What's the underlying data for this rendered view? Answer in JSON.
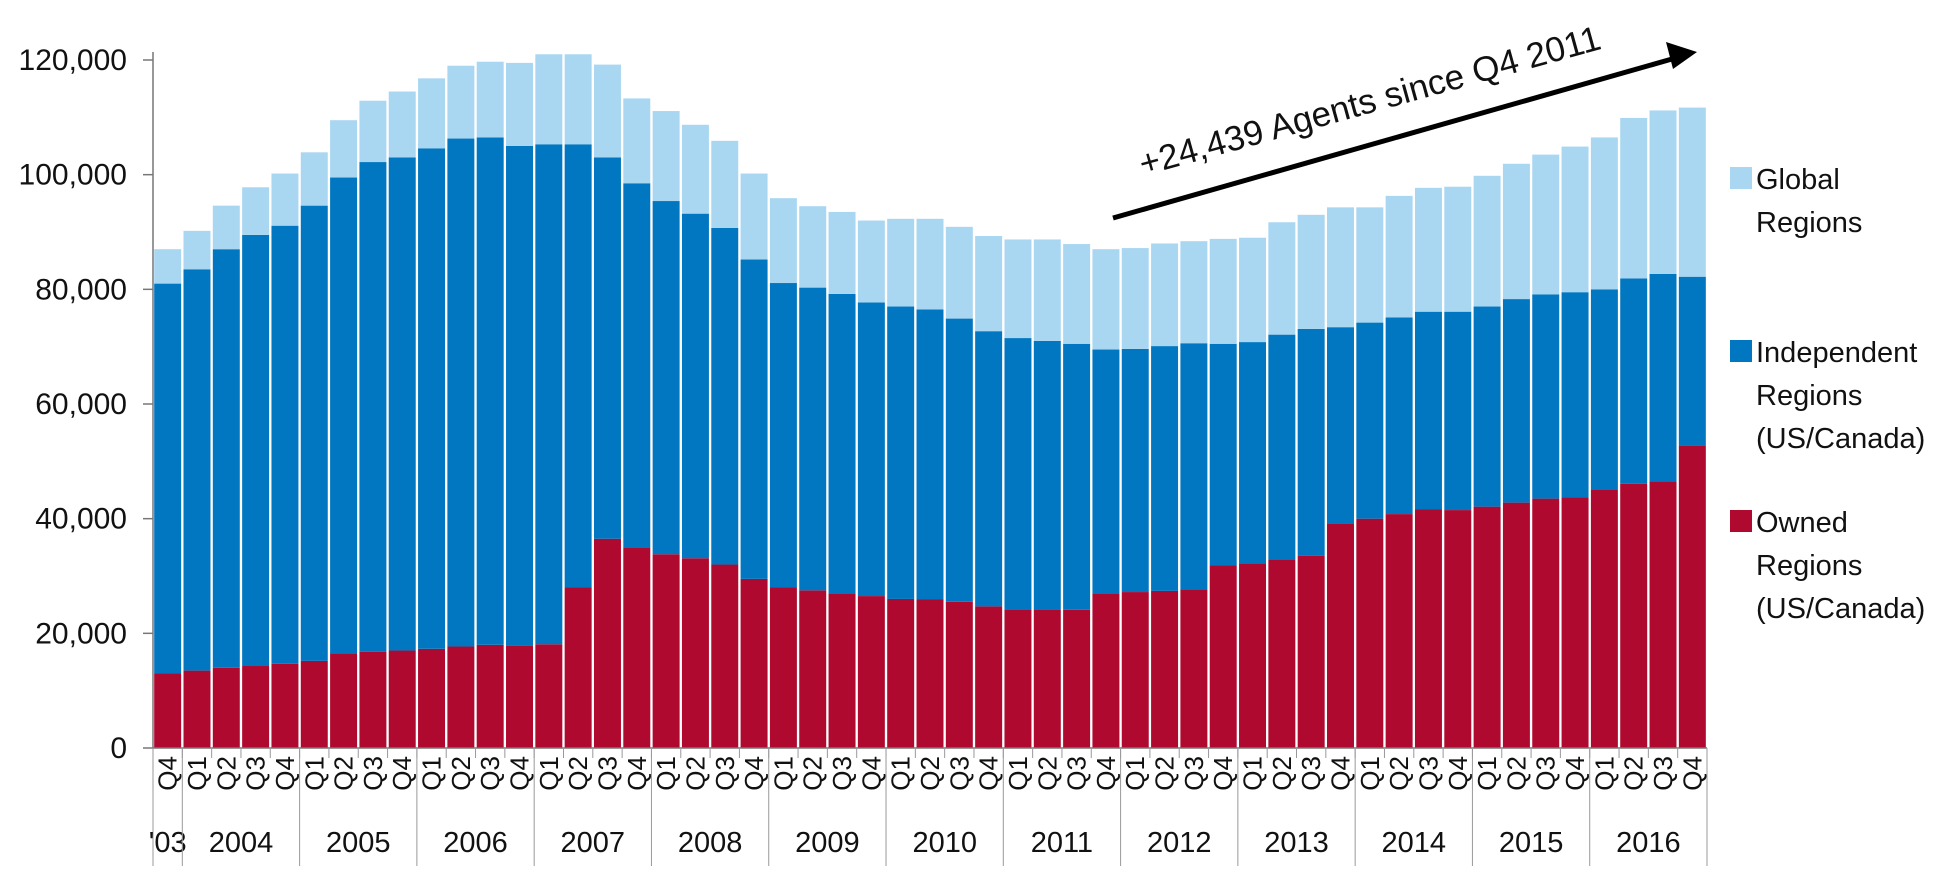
{
  "chart_data": {
    "type": "bar",
    "stacked": true,
    "ylim": [
      0,
      120000
    ],
    "yticks": [
      "0",
      "20,000",
      "40,000",
      "60,000",
      "80,000",
      "100,000",
      "120,000"
    ],
    "ytick_values": [
      0,
      20000,
      40000,
      60000,
      80000,
      100000,
      120000
    ],
    "quarters": [
      "Q4",
      "Q1",
      "Q2",
      "Q3",
      "Q4",
      "Q1",
      "Q2",
      "Q3",
      "Q4",
      "Q1",
      "Q2",
      "Q3",
      "Q4",
      "Q1",
      "Q2",
      "Q3",
      "Q4",
      "Q1",
      "Q2",
      "Q3",
      "Q4",
      "Q1",
      "Q2",
      "Q3",
      "Q4",
      "Q1",
      "Q2",
      "Q3",
      "Q4",
      "Q1",
      "Q2",
      "Q3",
      "Q4",
      "Q1",
      "Q2",
      "Q3",
      "Q4",
      "Q1",
      "Q2",
      "Q3",
      "Q4",
      "Q1",
      "Q2",
      "Q3",
      "Q4",
      "Q1",
      "Q2",
      "Q3",
      "Q4",
      "Q1",
      "Q2",
      "Q3",
      "Q4"
    ],
    "years": [
      {
        "label": "'03",
        "start": 0,
        "count": 1
      },
      {
        "label": "2004",
        "start": 1,
        "count": 4
      },
      {
        "label": "2005",
        "start": 5,
        "count": 4
      },
      {
        "label": "2006",
        "start": 9,
        "count": 4
      },
      {
        "label": "2007",
        "start": 13,
        "count": 4
      },
      {
        "label": "2008",
        "start": 17,
        "count": 4
      },
      {
        "label": "2009",
        "start": 21,
        "count": 4
      },
      {
        "label": "2010",
        "start": 25,
        "count": 4
      },
      {
        "label": "2011",
        "start": 29,
        "count": 4
      },
      {
        "label": "2012",
        "start": 33,
        "count": 4
      },
      {
        "label": "2013",
        "start": 37,
        "count": 4
      },
      {
        "label": "2014",
        "start": 41,
        "count": 4
      },
      {
        "label": "2015",
        "start": 45,
        "count": 4
      },
      {
        "label": "2016",
        "start": 49,
        "count": 4
      }
    ],
    "series": [
      {
        "name": "Owned Regions (US/Canada)",
        "color": "#B0092F",
        "values": [
          13000,
          13500,
          14000,
          14300,
          14700,
          15200,
          16500,
          16800,
          17000,
          17300,
          17700,
          18000,
          17800,
          18100,
          28000,
          36500,
          35000,
          33800,
          33100,
          32000,
          29500,
          28000,
          27500,
          27000,
          26500,
          26000,
          25900,
          25500,
          24700,
          24200,
          24200,
          24100,
          27000,
          27200,
          27400,
          27700,
          31900,
          32200,
          32900,
          33500,
          39200,
          40000,
          40800,
          41600,
          41500,
          42100,
          42800,
          43500,
          43700,
          45000,
          46100,
          46500,
          52800
        ]
      },
      {
        "name": "Independent Regions (US/Canada)",
        "color": "#0077C0",
        "values": [
          68000,
          70000,
          73000,
          75200,
          76400,
          79400,
          83000,
          85400,
          86000,
          87300,
          88600,
          88500,
          87200,
          87200,
          77300,
          66500,
          63500,
          61600,
          60100,
          58700,
          55700,
          53100,
          52800,
          52200,
          51200,
          51000,
          50600,
          49400,
          48000,
          47300,
          46800,
          46400,
          42500,
          42400,
          42700,
          42900,
          38600,
          38600,
          39200,
          39600,
          34200,
          34200,
          34300,
          34500,
          34600,
          34900,
          35500,
          35600,
          35800,
          35000,
          35800,
          36200,
          29400
        ]
      },
      {
        "name": "Global Regions",
        "color": "#A9D7F2",
        "values": [
          6000,
          6700,
          7600,
          8300,
          9100,
          9300,
          10000,
          10700,
          11500,
          12200,
          12700,
          13200,
          14500,
          15700,
          15700,
          16200,
          14800,
          15700,
          15500,
          15200,
          15000,
          14800,
          14200,
          14300,
          14300,
          15300,
          15800,
          16000,
          16600,
          17200,
          17700,
          17400,
          17500,
          17600,
          17900,
          17800,
          18300,
          18200,
          19600,
          19900,
          20900,
          20100,
          21200,
          21600,
          21800,
          22800,
          23600,
          24400,
          25400,
          26500,
          28000,
          28500,
          29500
        ]
      }
    ],
    "legend": [
      {
        "lines": [
          "Global",
          "Regions"
        ],
        "color": "#A9D7F2"
      },
      {
        "lines": [
          "Independent",
          "Regions",
          "(US/Canada)"
        ],
        "color": "#0077C0"
      },
      {
        "lines": [
          "Owned",
          "Regions",
          "(US/Canada)"
        ],
        "color": "#B0092F"
      }
    ],
    "annotation": "+24,439 Agents since Q4 2011"
  }
}
